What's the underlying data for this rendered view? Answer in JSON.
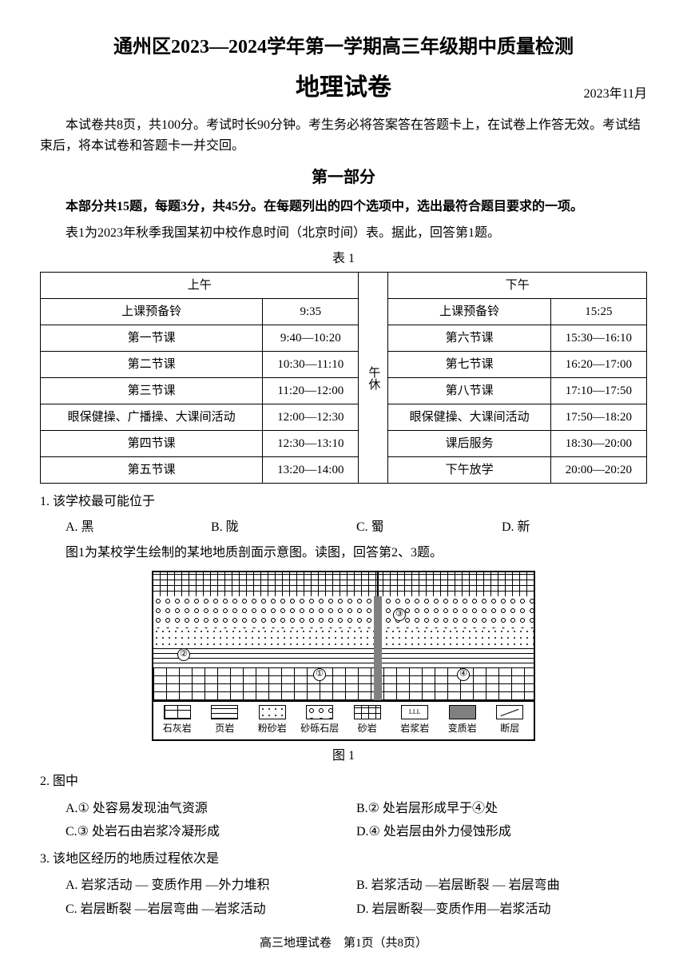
{
  "header": {
    "title": "通州区2023—2024学年第一学期高三年级期中质量检测",
    "subtitle": "地理试卷",
    "date": "2023年11月"
  },
  "intro": "本试卷共8页，共100分。考试时长90分钟。考生务必将答案答在答题卡上，在试卷上作答无效。考试结束后，将本试卷和答题卡一并交回。",
  "section1": {
    "title": "第一部分",
    "intro": "本部分共15题，每题3分，共45分。在每题列出的四个选项中，选出最符合题目要求的一项。"
  },
  "q1_intro": "表1为2023年秋季我国某初中校作息时间（北京时间）表。据此，回答第1题。",
  "table_title": "表 1",
  "schedule": {
    "am_header": "上午",
    "pm_header": "下午",
    "mid": "午休",
    "am": [
      [
        "上课预备铃",
        "9:35"
      ],
      [
        "第一节课",
        "9:40—10:20"
      ],
      [
        "第二节课",
        "10:30—11:10"
      ],
      [
        "第三节课",
        "11:20—12:00"
      ],
      [
        "眼保健操、广播操、大课间活动",
        "12:00—12:30"
      ],
      [
        "第四节课",
        "12:30—13:10"
      ],
      [
        "第五节课",
        "13:20—14:00"
      ]
    ],
    "pm": [
      [
        "上课预备铃",
        "15:25"
      ],
      [
        "第六节课",
        "15:30—16:10"
      ],
      [
        "第七节课",
        "16:20—17:00"
      ],
      [
        "第八节课",
        "17:10—17:50"
      ],
      [
        "眼保健操、大课间活动",
        "17:50—18:20"
      ],
      [
        "课后服务",
        "18:30—20:00"
      ],
      [
        "下午放学",
        "20:00—20:20"
      ]
    ]
  },
  "q1": {
    "text": "1. 该学校最可能位于",
    "opts": {
      "a": "A. 黑",
      "b": "B. 陇",
      "c": "C. 蜀",
      "d": "D. 新"
    }
  },
  "fig1_intro": "图1为某校学生绘制的某地地质剖面示意图。读图，回答第2、3题。",
  "fig1_caption": "图 1",
  "legend": {
    "items": [
      "石灰岩",
      "页岩",
      "粉砂岩",
      "砂砾石层",
      "砂岩",
      "岩浆岩",
      "变质岩",
      "断层"
    ],
    "swatch_patterns": [
      "pat-bricks",
      "pat-lines",
      "pat-dots",
      "pat-circles",
      "pat-tri",
      "",
      "",
      "fault-sw"
    ],
    "swatch_colors": [
      "",
      "",
      "",
      "",
      "",
      "#ffffff",
      "#808080",
      ""
    ],
    "swatch_text": [
      "",
      "",
      "",
      "",
      "",
      "LLL",
      "",
      ""
    ]
  },
  "diagram_labels": [
    "①",
    "②",
    "③",
    "④"
  ],
  "q2": {
    "text": "2. 图中",
    "opts": {
      "a": "A.① 处容易发现油气资源",
      "b": "B.② 处岩层形成早于④处",
      "c": "C.③ 处岩石由岩浆冷凝形成",
      "d": "D.④ 处岩层由外力侵蚀形成"
    }
  },
  "q3": {
    "text": "3. 该地区经历的地质过程依次是",
    "opts": {
      "a": "A. 岩浆活动 — 变质作用 —外力堆积",
      "b": "B. 岩浆活动 —岩层断裂 — 岩层弯曲",
      "c": "C. 岩层断裂 —岩层弯曲 —岩浆活动",
      "d": "D. 岩层断裂—变质作用—岩浆活动"
    }
  },
  "footer": "高三地理试卷　第1页（共8页）"
}
